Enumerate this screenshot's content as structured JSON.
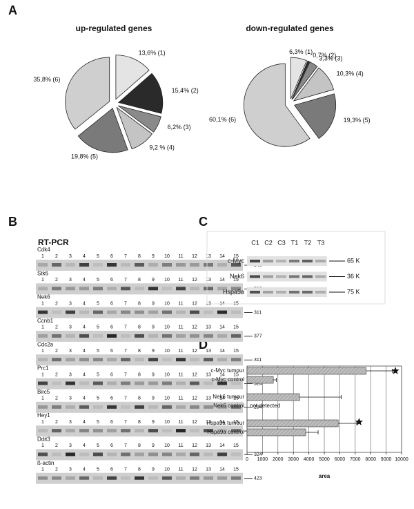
{
  "panel_labels": [
    "A",
    "B",
    "C",
    "D"
  ],
  "chart_data": [
    {
      "type": "pie",
      "title": "up-regulated genes",
      "values": [
        13.6,
        15.4,
        6.2,
        9.2,
        19.8,
        35.8
      ],
      "value_labels": [
        "13,6% (1)",
        "15,4% (2)",
        "6,2% (3)",
        "9,2 % (4)",
        "19,8% (5)",
        "35,8% (6)"
      ],
      "colors": [
        "#e4e4e4",
        "#2a2a2a",
        "#8a8a8a",
        "#c4c4c4",
        "#7a7a7a",
        "#cfcfcf"
      ]
    },
    {
      "type": "pie",
      "title": "down-regulated genes",
      "values": [
        6.3,
        0.7,
        3.3,
        10.3,
        19.3,
        60.1
      ],
      "value_labels": [
        "6,3% (1)",
        "0,7% (2)",
        "3,3% (3)",
        "10,3% (4)",
        "19,3% (5)",
        "60,1% (6)"
      ],
      "colors": [
        "#e4e4e4",
        "#2a2a2a",
        "#8a8a8a",
        "#c4c4c4",
        "#7a7a7a",
        "#cfcfcf"
      ]
    },
    {
      "type": "hbar",
      "x_label": "area",
      "categories": [
        "c-Myc tumour",
        "c-Myc control",
        "Nek6 tumour",
        "Nek6 control",
        "Hspa9a tumour",
        "Hspa9a control"
      ],
      "values": [
        7700,
        1700,
        3400,
        null,
        5900,
        3800
      ],
      "errors": [
        1700,
        200,
        2700,
        null,
        1200,
        800
      ],
      "annotations": [
        "not detected"
      ],
      "color": "#bdbdbd",
      "xlim": [
        0,
        10000
      ],
      "xticks": [
        0,
        1000,
        2000,
        3000,
        4000,
        5000,
        6000,
        7000,
        8000,
        9000,
        10000
      ],
      "grid": true
    }
  ],
  "rt_pcr": {
    "title": "RT-PCR",
    "lanes": [
      1,
      2,
      3,
      4,
      5,
      6,
      7,
      8,
      9,
      10,
      11,
      12,
      13,
      14,
      15
    ],
    "genes": [
      {
        "name": "Cdk4",
        "size": 340
      },
      {
        "name": "Stk6",
        "size": 318
      },
      {
        "name": "Nek6",
        "size": 311
      },
      {
        "name": "Ccnb1",
        "size": 377
      },
      {
        "name": "Cdc2a",
        "size": 311
      },
      {
        "name": "Prc1",
        "size": 324
      },
      {
        "name": "Birc5",
        "size": 294
      },
      {
        "name": "Hey1",
        "size": 331
      },
      {
        "name": "Ddit3",
        "size": 324
      },
      {
        "name": "ß-actin",
        "size": 423
      }
    ]
  },
  "western": {
    "lanes": [
      "C1",
      "C2",
      "C3",
      "T1",
      "T2",
      "T3"
    ],
    "rows": [
      {
        "name": "c-Myc",
        "size": "65 K"
      },
      {
        "name": "Nek6",
        "size": "36 K"
      },
      {
        "name": "Hspa9a",
        "size": "75 K"
      }
    ]
  }
}
